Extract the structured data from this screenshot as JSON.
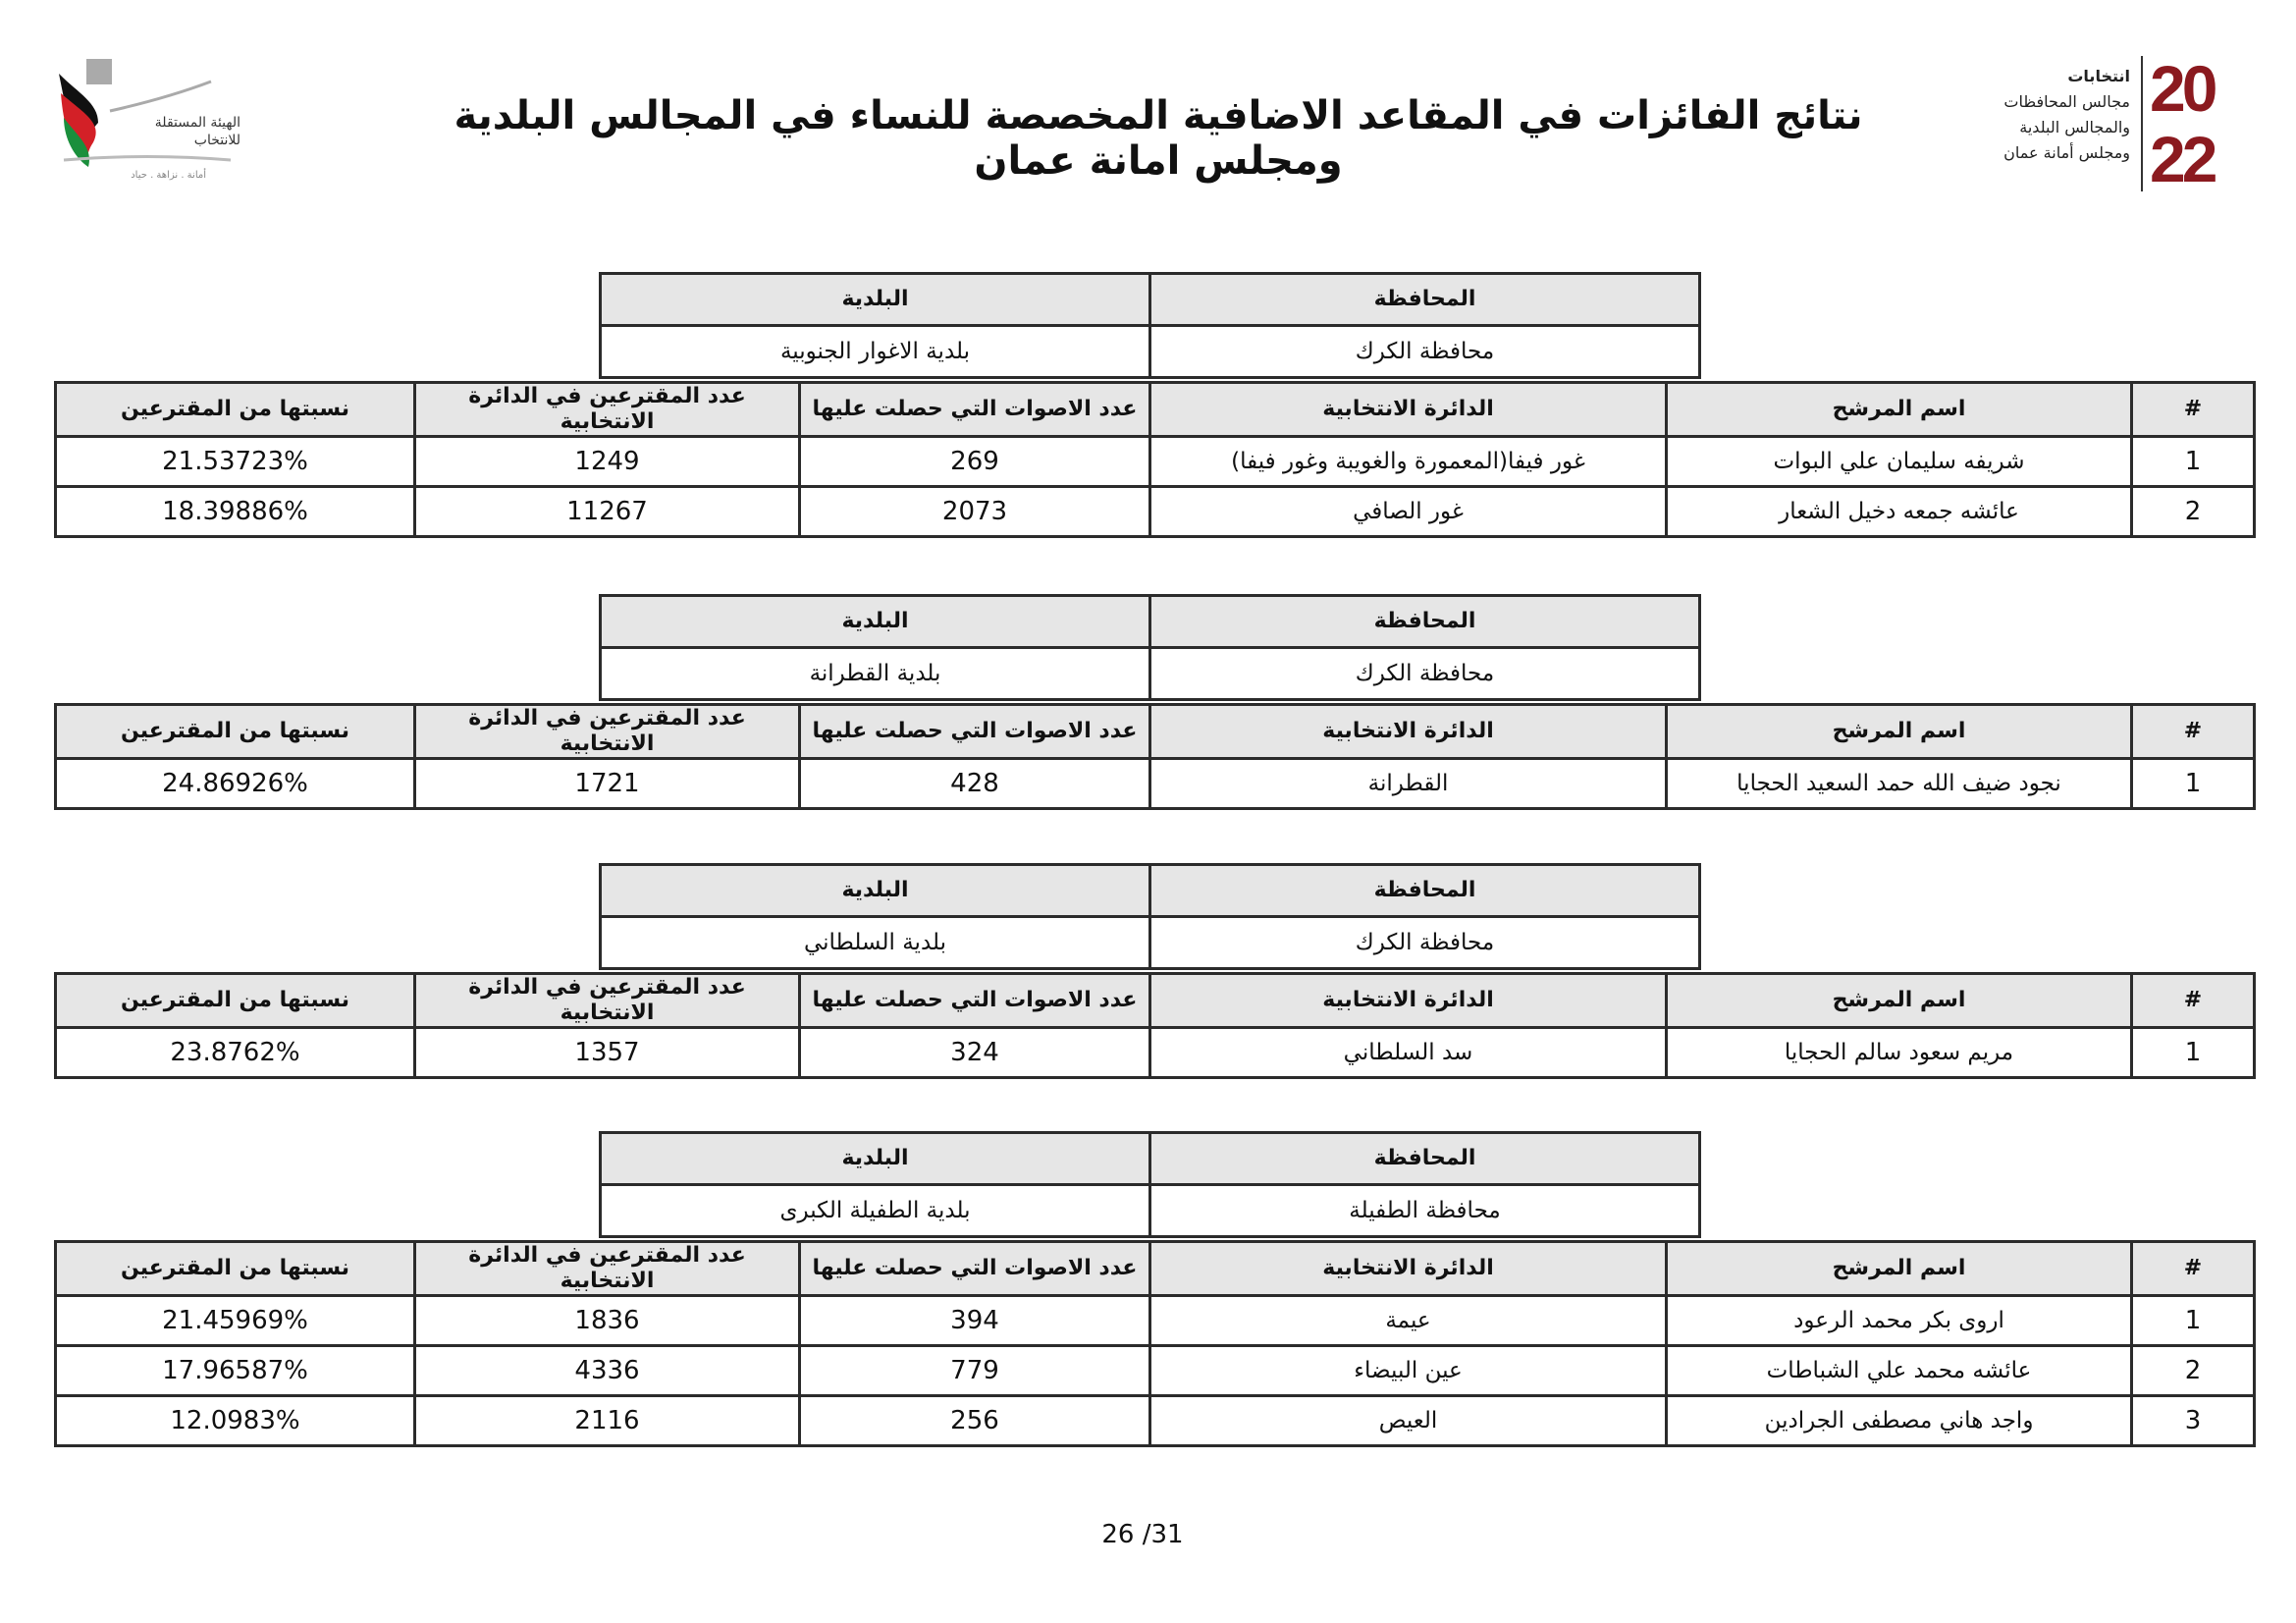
{
  "header": {
    "title": "نتائج الفائزات في المقاعد الاضافية المخصصة للنساء في المجالس البلدية ومجلس امانة عمان",
    "left_logo": {
      "icon": "iec-jordan-logo",
      "text_line1": "الهيئة المستقلة",
      "text_line2": "للانتخاب",
      "motto": "أمانة . نزاهة . حياد"
    },
    "right_logo": {
      "icon": "elections-2022-logo",
      "year": "2022",
      "lines": [
        "انتخابات",
        "مجالس المحافظات",
        "والمجالس البلدية",
        "ومجلس أمانة عمان"
      ],
      "color": "#8b1a1f"
    }
  },
  "labels": {
    "governorate": "المحافظة",
    "municipality": "البلدية",
    "num": "#",
    "candidate": "اسم المرشح",
    "district": "الدائرة الانتخابية",
    "votes": "عدد الاصوات التي حصلت عليها",
    "voters": "عدد المقترعين في الدائرة الانتخابية",
    "ratio": "نسبتها من المقترعين"
  },
  "blocks": [
    {
      "governorate": "محافظة الكرك",
      "municipality": "بلدية الاغوار الجنوبية",
      "rows": [
        {
          "num": "1",
          "candidate": "شريفه سليمان علي البوات",
          "district": "غور فيفا(المعمورة والغويبة وغور فيفا)",
          "votes": "269",
          "voters": "1249",
          "ratio": "21.53723%"
        },
        {
          "num": "2",
          "candidate": "عائشه جمعه دخيل الشعار",
          "district": "غور الصافي",
          "votes": "2073",
          "voters": "11267",
          "ratio": "18.39886%"
        }
      ]
    },
    {
      "governorate": "محافظة الكرك",
      "municipality": "بلدية القطرانة",
      "rows": [
        {
          "num": "1",
          "candidate": "نجود ضيف الله حمد السعيد الحجايا",
          "district": "القطرانة",
          "votes": "428",
          "voters": "1721",
          "ratio": "24.86926%"
        }
      ]
    },
    {
      "governorate": "محافظة الكرك",
      "municipality": "بلدية السلطاني",
      "rows": [
        {
          "num": "1",
          "candidate": "مريم سعود سالم الحجايا",
          "district": "سد السلطاني",
          "votes": "324",
          "voters": "1357",
          "ratio": "23.8762%"
        }
      ]
    },
    {
      "governorate": "محافظة الطفيلة",
      "municipality": "بلدية الطفيلة الكبرى",
      "rows": [
        {
          "num": "1",
          "candidate": "اروى بكر محمد الرعود",
          "district": "عيمة",
          "votes": "394",
          "voters": "1836",
          "ratio": "21.45969%"
        },
        {
          "num": "2",
          "candidate": "عائشه محمد علي الشباطات",
          "district": "عين البيضاء",
          "votes": "779",
          "voters": "4336",
          "ratio": "17.96587%"
        },
        {
          "num": "3",
          "candidate": "واجد هاني مصطفى الجرادين",
          "district": "العيص",
          "votes": "256",
          "voters": "2116",
          "ratio": "12.0983%"
        }
      ]
    }
  ],
  "footer": {
    "page": "26 /31"
  }
}
